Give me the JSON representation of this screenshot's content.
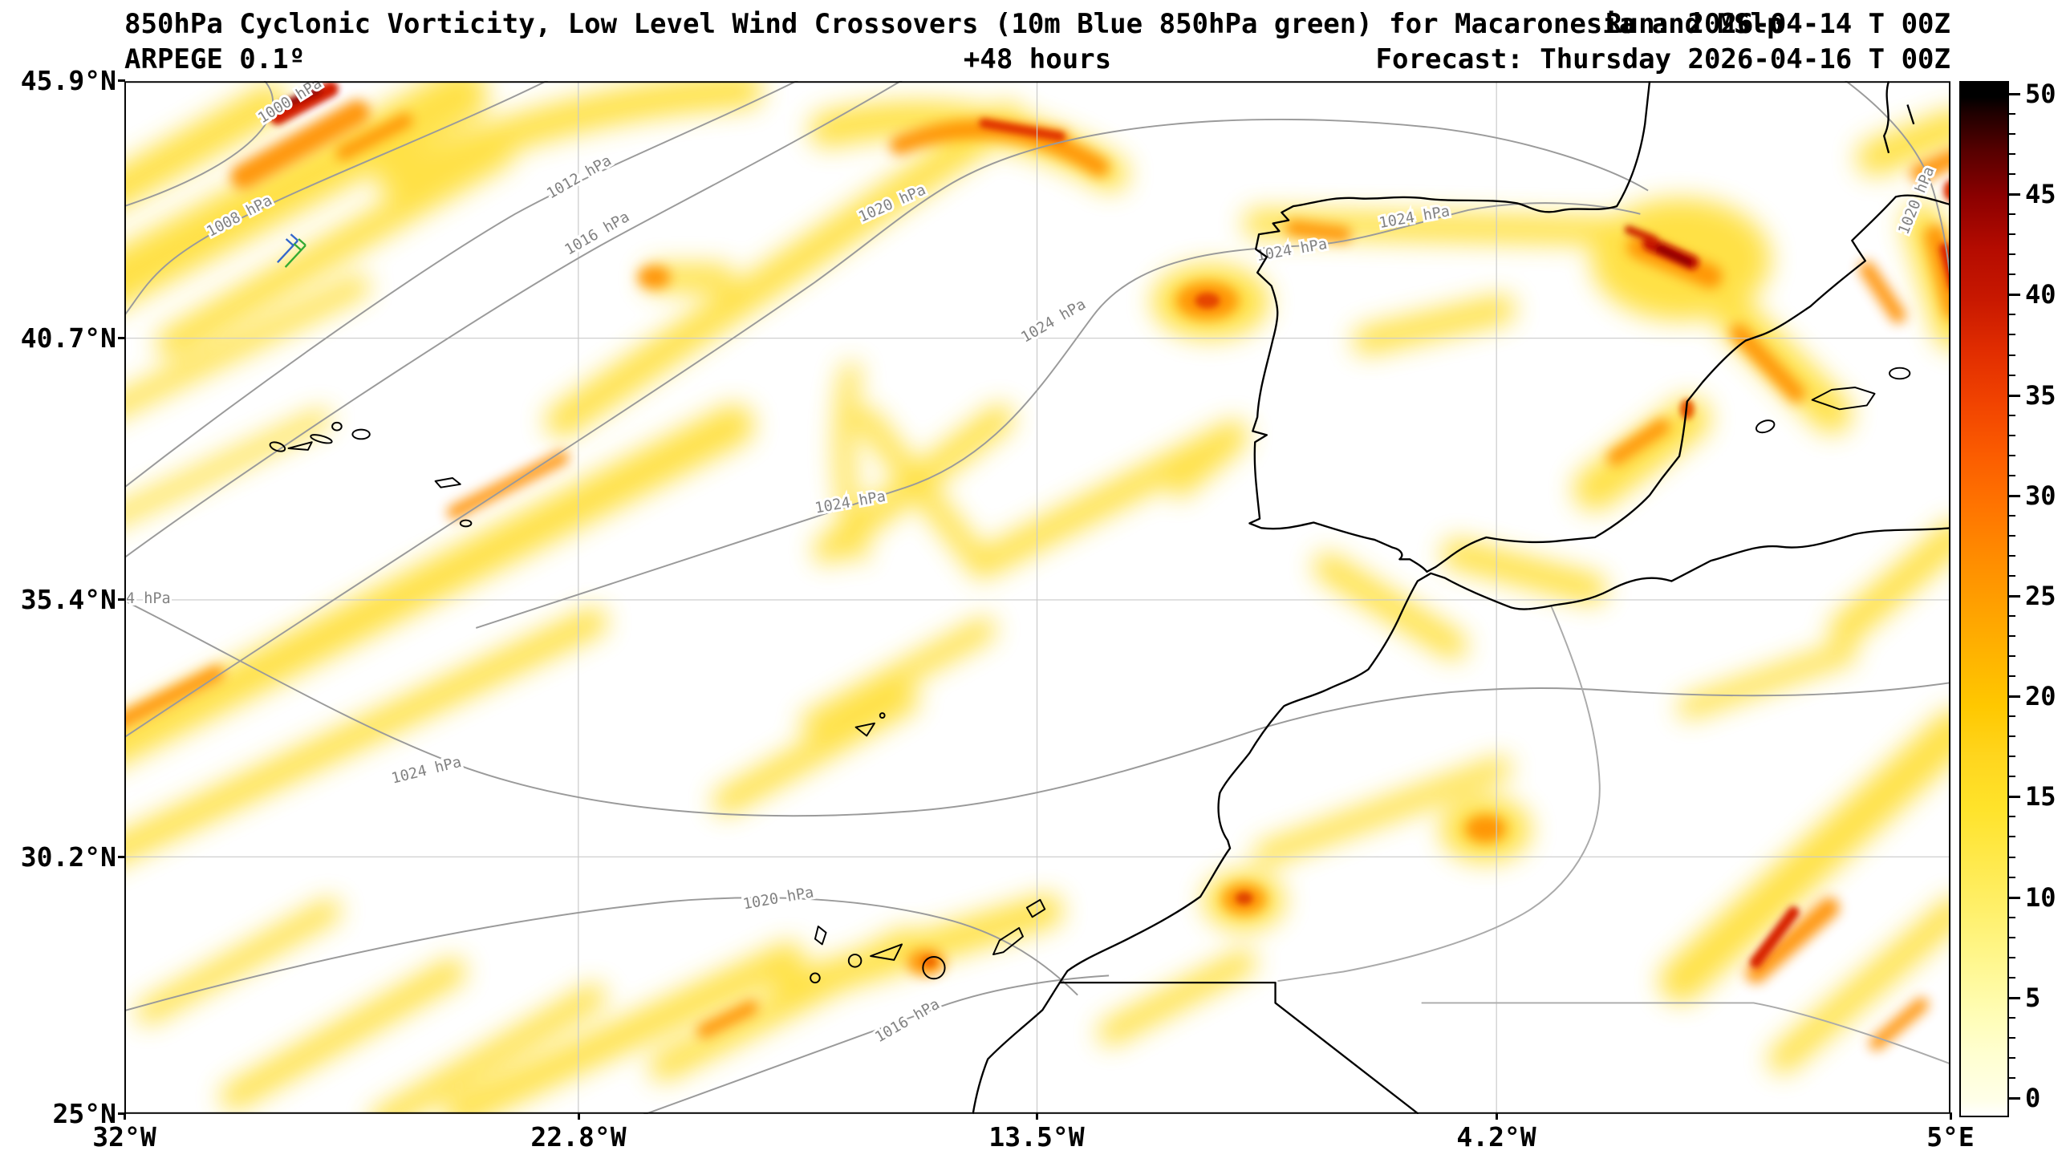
{
  "header": {
    "title": "850hPa Cyclonic Vorticity, Low Level Wind Crossovers (10m Blue 850hPa green) for Macaronesia and MSlp",
    "run": "Run: 2026-04-14 T 00Z",
    "model": "ARPEGE 0.1º",
    "lead_time": "+48 hours",
    "forecast": "Forecast: Thursday 2026-04-16 T 00Z"
  },
  "axes": {
    "y_ticks": [
      "45.9°N",
      "40.7°N",
      "35.4°N",
      "30.2°N",
      "25°N"
    ],
    "x_ticks": [
      "32°W",
      "22.8°W",
      "13.5°W",
      "4.2°W",
      "5°E"
    ]
  },
  "colorbar": {
    "ticks": [
      "0",
      "5",
      "10",
      "15",
      "20",
      "25",
      "30",
      "35",
      "40",
      "45",
      "50"
    ]
  },
  "map": {
    "isobar_labels": [
      {
        "text": "1000 hPa"
      },
      {
        "text": "1008 hPa"
      },
      {
        "text": "1012 hPa"
      },
      {
        "text": "1016 hPa"
      },
      {
        "text": "1020 hPa"
      },
      {
        "text": "1024 hPa"
      },
      {
        "text": "1024 hPa"
      },
      {
        "text": "1024 hPa"
      },
      {
        "text": "1024 hPa"
      },
      {
        "text": "1024 hPa"
      },
      {
        "text": "4 hPa"
      },
      {
        "text": "1020 hPa"
      },
      {
        "text": "1016 hPa"
      },
      {
        "text": "1020 hPa"
      }
    ]
  },
  "chart_data": {
    "type": "heatmap",
    "title": "850hPa Cyclonic Vorticity, Low Level Wind Crossovers (10m Blue 850hPa green) for Macaronesia and MSlp",
    "model": "ARPEGE 0.1º",
    "run": "Run: 2026-04-14 T 00Z",
    "forecast_valid": "Thursday 2026-04-16 T 00Z",
    "lead_hours": 48,
    "x_axis": {
      "label": "longitude",
      "ticks": [
        "32°W",
        "22.8°W",
        "13.5°W",
        "4.2°W",
        "5°E"
      ]
    },
    "y_axis": {
      "label": "latitude",
      "ticks": [
        "45.9°N",
        "40.7°N",
        "35.4°N",
        "30.2°N",
        "25°N"
      ]
    },
    "colorbar": {
      "min": 0,
      "max": 50,
      "tick_step": 5,
      "colors_low_to_high": [
        "#ffffe0",
        "#ffee55",
        "#ffc400",
        "#ff7800",
        "#e82800",
        "#8b0000",
        "#000000"
      ]
    },
    "isobars_hpa": [
      1000,
      1008,
      1012,
      1016,
      1020,
      1024
    ],
    "legend_note_from_title": "10m wind Blue, 850hPa wind green"
  }
}
